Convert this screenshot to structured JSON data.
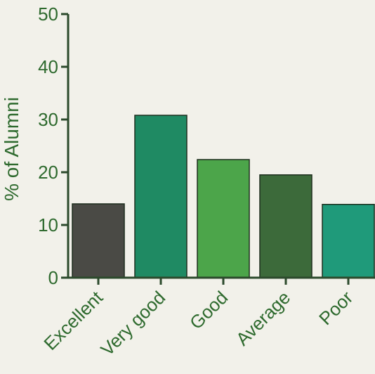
{
  "chart_data": {
    "type": "bar",
    "title": "",
    "xlabel": "",
    "ylabel": "% of Alumni",
    "categories": [
      "Excellent",
      "Very good",
      "Good",
      "Average",
      "Poor"
    ],
    "values": [
      14,
      30.8,
      22.4,
      19.5,
      13.9
    ],
    "yticks": [
      "0",
      "10",
      "20",
      "30",
      "40",
      "50"
    ],
    "ylim": [
      0,
      50
    ],
    "grid": false,
    "legend": "none",
    "bar_colors": [
      "#4a4a45",
      "#1f8a63",
      "#4ca54a",
      "#3c6a3a",
      "#1f9a7a"
    ],
    "text_color": "#2e6a2e",
    "axis_color": "#2c4a2c"
  }
}
